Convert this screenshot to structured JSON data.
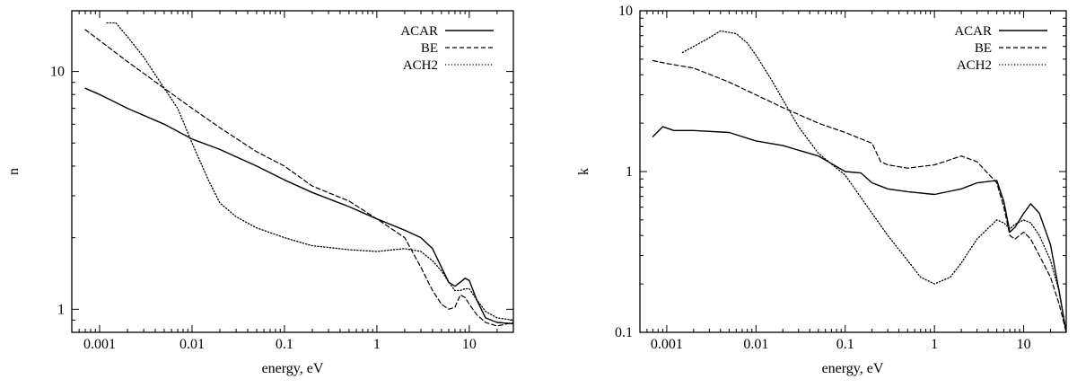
{
  "chart_data": [
    {
      "type": "line",
      "title": "",
      "xlabel": "energy, eV",
      "ylabel": "n",
      "x_scale": "log",
      "y_scale": "log",
      "xlim": [
        0.0005,
        30
      ],
      "ylim": [
        0.8,
        18
      ],
      "x_ticks": [
        0.001,
        0.01,
        0.1,
        1,
        10
      ],
      "x_tick_labels": [
        "0.001",
        "0.01",
        "0.1",
        "1",
        "10"
      ],
      "y_ticks": [
        1,
        10
      ],
      "y_tick_labels": [
        "1",
        "10"
      ],
      "legend_position": "top-right",
      "grid": false,
      "series": [
        {
          "name": "ACAR",
          "style": "solid",
          "x": [
            0.0007,
            0.001,
            0.002,
            0.005,
            0.01,
            0.02,
            0.05,
            0.1,
            0.2,
            0.5,
            1,
            2,
            3,
            4,
            5,
            6,
            7,
            8,
            9,
            10,
            12,
            15,
            20,
            30
          ],
          "y": [
            8.5,
            8.0,
            7.0,
            6.0,
            5.2,
            4.7,
            4.0,
            3.5,
            3.1,
            2.7,
            2.4,
            2.15,
            2.0,
            1.8,
            1.5,
            1.3,
            1.25,
            1.3,
            1.35,
            1.32,
            1.1,
            0.92,
            0.88,
            0.87
          ]
        },
        {
          "name": "BE",
          "style": "dashed",
          "x": [
            0.0007,
            0.001,
            0.002,
            0.005,
            0.01,
            0.02,
            0.05,
            0.1,
            0.2,
            0.5,
            1,
            2,
            3,
            4,
            5,
            6,
            7,
            8,
            9,
            10,
            12,
            15,
            20,
            30
          ],
          "y": [
            15,
            13.5,
            11.0,
            8.5,
            7.0,
            5.8,
            4.6,
            4.0,
            3.3,
            2.85,
            2.4,
            2.0,
            1.5,
            1.2,
            1.05,
            1.0,
            1.02,
            1.15,
            1.12,
            1.05,
            0.95,
            0.88,
            0.85,
            0.88
          ]
        },
        {
          "name": "ACH2",
          "style": "dotted",
          "x": [
            0.0012,
            0.0015,
            0.002,
            0.003,
            0.005,
            0.007,
            0.01,
            0.015,
            0.02,
            0.03,
            0.05,
            0.1,
            0.2,
            0.5,
            1,
            2,
            3,
            4,
            5,
            6,
            7,
            8,
            9,
            10,
            12,
            15,
            20,
            30
          ],
          "y": [
            16,
            16,
            14,
            11.5,
            8.5,
            7.0,
            5.0,
            3.5,
            2.8,
            2.45,
            2.2,
            2.0,
            1.85,
            1.78,
            1.75,
            1.8,
            1.75,
            1.6,
            1.45,
            1.3,
            1.2,
            1.2,
            1.22,
            1.22,
            1.1,
            0.98,
            0.92,
            0.9
          ]
        }
      ]
    },
    {
      "type": "line",
      "title": "",
      "xlabel": "energy, eV",
      "ylabel": "k",
      "x_scale": "log",
      "y_scale": "log",
      "xlim": [
        0.0005,
        30
      ],
      "ylim": [
        0.1,
        10
      ],
      "x_ticks": [
        0.001,
        0.01,
        0.1,
        1,
        10
      ],
      "x_tick_labels": [
        "0.001",
        "0.01",
        "0.1",
        "1",
        "10"
      ],
      "y_ticks": [
        0.1,
        1,
        10
      ],
      "y_tick_labels": [
        "0.1",
        "1",
        "10"
      ],
      "legend_position": "top-right",
      "grid": false,
      "series": [
        {
          "name": "ACAR",
          "style": "solid",
          "x": [
            0.0007,
            0.0009,
            0.0012,
            0.002,
            0.005,
            0.01,
            0.02,
            0.05,
            0.1,
            0.15,
            0.2,
            0.3,
            0.5,
            1,
            2,
            3,
            5,
            6,
            7,
            8,
            10,
            12,
            15,
            20,
            25,
            30
          ],
          "y": [
            1.65,
            1.9,
            1.8,
            1.8,
            1.75,
            1.55,
            1.45,
            1.25,
            1.0,
            0.98,
            0.85,
            0.78,
            0.75,
            0.72,
            0.78,
            0.85,
            0.88,
            0.65,
            0.42,
            0.45,
            0.55,
            0.63,
            0.55,
            0.35,
            0.18,
            0.1
          ]
        },
        {
          "name": "BE",
          "style": "dashed",
          "x": [
            0.0007,
            0.001,
            0.002,
            0.005,
            0.01,
            0.02,
            0.05,
            0.1,
            0.2,
            0.25,
            0.3,
            0.5,
            1,
            2,
            3,
            5,
            6,
            7,
            8,
            10,
            12,
            15,
            20,
            25,
            30
          ],
          "y": [
            4.9,
            4.7,
            4.4,
            3.6,
            3.0,
            2.5,
            2.0,
            1.75,
            1.5,
            1.15,
            1.1,
            1.05,
            1.1,
            1.25,
            1.15,
            0.85,
            0.6,
            0.4,
            0.38,
            0.42,
            0.38,
            0.3,
            0.22,
            0.15,
            0.1
          ]
        },
        {
          "name": "ACH2",
          "style": "dotted",
          "x": [
            0.0015,
            0.002,
            0.003,
            0.004,
            0.006,
            0.008,
            0.01,
            0.015,
            0.02,
            0.03,
            0.05,
            0.1,
            0.2,
            0.3,
            0.5,
            0.7,
            1,
            1.5,
            2,
            3,
            5,
            6,
            7,
            8,
            10,
            12,
            15,
            20,
            25,
            30
          ],
          "y": [
            5.5,
            6.0,
            6.8,
            7.5,
            7.2,
            6.3,
            5.3,
            3.7,
            2.8,
            1.9,
            1.3,
            0.95,
            0.55,
            0.4,
            0.28,
            0.22,
            0.2,
            0.22,
            0.27,
            0.38,
            0.5,
            0.48,
            0.44,
            0.47,
            0.5,
            0.48,
            0.4,
            0.28,
            0.18,
            0.1
          ]
        }
      ]
    }
  ]
}
